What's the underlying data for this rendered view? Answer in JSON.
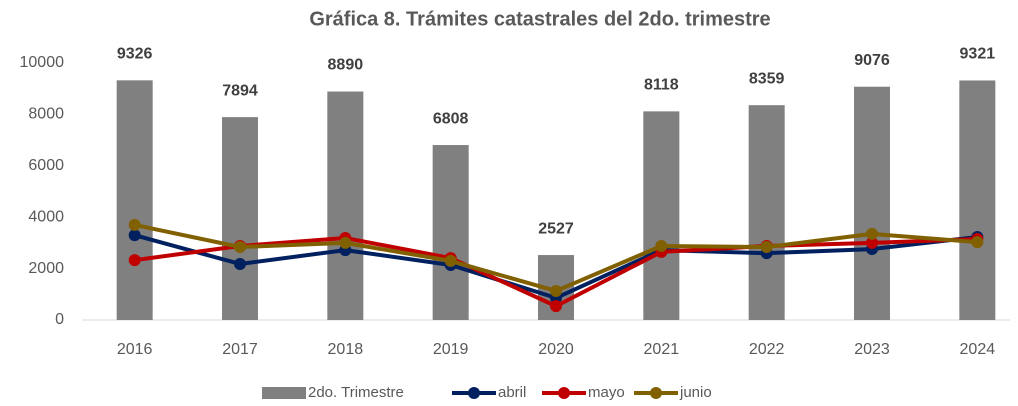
{
  "chart_data": {
    "type": "bar",
    "title": "Gráfica 8. Trámites catastrales del 2do. trimestre",
    "categories": [
      "2016",
      "2017",
      "2018",
      "2019",
      "2020",
      "2021",
      "2022",
      "2023",
      "2024"
    ],
    "series": [
      {
        "name": "2do. Trimestre",
        "type": "bar",
        "color": "#808080",
        "values": [
          9326,
          7894,
          8890,
          6808,
          2527,
          8118,
          8359,
          9076,
          9321
        ]
      },
      {
        "name": "abril",
        "type": "line",
        "color": "#002060",
        "values": [
          3300,
          2180,
          2720,
          2140,
          860,
          2720,
          2600,
          2760,
          3230
        ]
      },
      {
        "name": "mayo",
        "type": "line",
        "color": "#c00000",
        "values": [
          2330,
          2880,
          3190,
          2410,
          540,
          2650,
          2880,
          3000,
          3150
        ]
      },
      {
        "name": "junio",
        "type": "line",
        "color": "#806000",
        "values": [
          3700,
          2840,
          3000,
          2300,
          1130,
          2880,
          2840,
          3350,
          3030
        ]
      }
    ],
    "ylim": [
      0,
      10000
    ],
    "yticks": [
      0,
      2000,
      4000,
      6000,
      8000,
      10000
    ],
    "grid": false
  }
}
